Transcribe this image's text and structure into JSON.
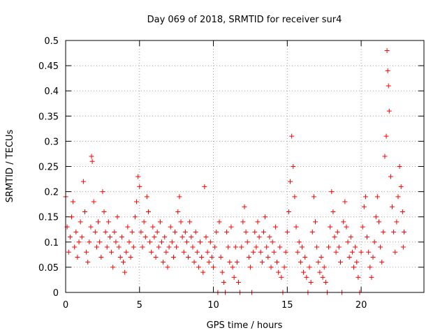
{
  "chart_data": {
    "type": "scatter",
    "title": "Day 069 of 2018, SRMTID for receiver sur4",
    "xlabel": "GPS time / hours",
    "ylabel": "SRMTID / TECUs",
    "xlim": [
      0,
      24.25
    ],
    "ylim": [
      0,
      0.5
    ],
    "x_ticks": [
      0,
      5,
      10,
      15,
      20
    ],
    "x_tick_labels": [
      "0",
      "5",
      "10",
      "15",
      "20"
    ],
    "y_ticks": [
      0,
      0.05,
      0.1,
      0.15,
      0.2,
      0.25,
      0.3,
      0.35,
      0.4,
      0.45,
      0.5
    ],
    "y_tick_labels": [
      "0",
      "0.05",
      "0.1",
      "0.15",
      "0.2",
      "0.25",
      "0.3",
      "0.35",
      "0.4",
      "0.45",
      "0.5"
    ],
    "grid": true,
    "marker": "+",
    "color": "#ff0000",
    "series": [
      {
        "name": "SRMTID",
        "points": [
          [
            0.0,
            0.19
          ],
          [
            0.1,
            0.13
          ],
          [
            0.2,
            0.08
          ],
          [
            0.3,
            0.11
          ],
          [
            0.4,
            0.15
          ],
          [
            0.5,
            0.18
          ],
          [
            0.6,
            0.09
          ],
          [
            0.7,
            0.12
          ],
          [
            0.8,
            0.07
          ],
          [
            0.9,
            0.1
          ],
          [
            1.0,
            0.14
          ],
          [
            1.1,
            0.11
          ],
          [
            1.2,
            0.22
          ],
          [
            1.3,
            0.16
          ],
          [
            1.4,
            0.08
          ],
          [
            1.5,
            0.06
          ],
          [
            1.6,
            0.1
          ],
          [
            1.7,
            0.13
          ],
          [
            1.75,
            0.27
          ],
          [
            1.8,
            0.26
          ],
          [
            1.9,
            0.18
          ],
          [
            2.0,
            0.12
          ],
          [
            2.1,
            0.09
          ],
          [
            2.2,
            0.14
          ],
          [
            2.3,
            0.1
          ],
          [
            2.4,
            0.07
          ],
          [
            2.5,
            0.2
          ],
          [
            2.6,
            0.16
          ],
          [
            2.7,
            0.12
          ],
          [
            2.8,
            0.09
          ],
          [
            2.9,
            0.14
          ],
          [
            3.0,
            0.11
          ],
          [
            3.1,
            0.08
          ],
          [
            3.2,
            0.05
          ],
          [
            3.3,
            0.12
          ],
          [
            3.4,
            0.1
          ],
          [
            3.5,
            0.15
          ],
          [
            3.6,
            0.09
          ],
          [
            3.7,
            0.07
          ],
          [
            3.8,
            0.11
          ],
          [
            3.9,
            0.06
          ],
          [
            4.0,
            0.04
          ],
          [
            4.1,
            0.08
          ],
          [
            4.2,
            0.13
          ],
          [
            4.3,
            0.1
          ],
          [
            4.4,
            0.07
          ],
          [
            4.5,
            0.12
          ],
          [
            4.6,
            0.09
          ],
          [
            4.7,
            0.15
          ],
          [
            4.8,
            0.18
          ],
          [
            4.9,
            0.23
          ],
          [
            5.0,
            0.21
          ],
          [
            5.1,
            0.12
          ],
          [
            5.2,
            0.09
          ],
          [
            5.3,
            0.14
          ],
          [
            5.4,
            0.11
          ],
          [
            5.5,
            0.19
          ],
          [
            5.6,
            0.16
          ],
          [
            5.7,
            0.1
          ],
          [
            5.8,
            0.08
          ],
          [
            5.9,
            0.13
          ],
          [
            6.0,
            0.11
          ],
          [
            6.1,
            0.07
          ],
          [
            6.2,
            0.12
          ],
          [
            6.3,
            0.09
          ],
          [
            6.4,
            0.14
          ],
          [
            6.5,
            0.1
          ],
          [
            6.6,
            0.06
          ],
          [
            6.7,
            0.11
          ],
          [
            6.8,
            0.08
          ],
          [
            6.9,
            0.05
          ],
          [
            7.0,
            0.09
          ],
          [
            7.1,
            0.13
          ],
          [
            7.2,
            0.1
          ],
          [
            7.3,
            0.07
          ],
          [
            7.4,
            0.12
          ],
          [
            7.5,
            0.09
          ],
          [
            7.6,
            0.16
          ],
          [
            7.7,
            0.19
          ],
          [
            7.8,
            0.14
          ],
          [
            7.9,
            0.11
          ],
          [
            8.0,
            0.08
          ],
          [
            8.1,
            0.12
          ],
          [
            8.2,
            0.1
          ],
          [
            8.3,
            0.07
          ],
          [
            8.4,
            0.14
          ],
          [
            8.5,
            0.11
          ],
          [
            8.6,
            0.09
          ],
          [
            8.7,
            0.06
          ],
          [
            8.8,
            0.12
          ],
          [
            8.9,
            0.08
          ],
          [
            9.0,
            0.05
          ],
          [
            9.1,
            0.1
          ],
          [
            9.2,
            0.07
          ],
          [
            9.3,
            0.04
          ],
          [
            9.4,
            0.21
          ],
          [
            9.5,
            0.11
          ],
          [
            9.6,
            0.08
          ],
          [
            9.7,
            0.06
          ],
          [
            9.8,
            0.1
          ],
          [
            9.9,
            0.07
          ],
          [
            10.0,
            0.05
          ],
          [
            10.1,
            0.09
          ],
          [
            10.2,
            0.12
          ],
          [
            10.3,
            0.0
          ],
          [
            10.4,
            0.14
          ],
          [
            10.5,
            0.07
          ],
          [
            10.6,
            0.04
          ],
          [
            10.7,
            0.02
          ],
          [
            10.8,
            0.0
          ],
          [
            10.9,
            0.12
          ],
          [
            11.0,
            0.09
          ],
          [
            11.1,
            0.06
          ],
          [
            11.2,
            0.13
          ],
          [
            11.3,
            0.05
          ],
          [
            11.4,
            0.03
          ],
          [
            11.5,
            0.09
          ],
          [
            11.6,
            0.06
          ],
          [
            11.7,
            0.02
          ],
          [
            11.8,
            0.0
          ],
          [
            11.9,
            0.09
          ],
          [
            12.0,
            0.14
          ],
          [
            12.1,
            0.17
          ],
          [
            12.2,
            0.12
          ],
          [
            12.3,
            0.1
          ],
          [
            12.4,
            0.07
          ],
          [
            12.5,
            0.05
          ],
          [
            12.6,
            0.0
          ],
          [
            12.7,
            0.08
          ],
          [
            12.8,
            0.12
          ],
          [
            12.9,
            0.09
          ],
          [
            13.0,
            0.14
          ],
          [
            13.1,
            0.11
          ],
          [
            13.2,
            0.08
          ],
          [
            13.3,
            0.06
          ],
          [
            13.4,
            0.12
          ],
          [
            13.5,
            0.15
          ],
          [
            13.6,
            0.09
          ],
          [
            13.7,
            0.07
          ],
          [
            13.8,
            0.11
          ],
          [
            13.9,
            0.05
          ],
          [
            14.0,
            0.1
          ],
          [
            14.1,
            0.08
          ],
          [
            14.2,
            0.13
          ],
          [
            14.3,
            0.06
          ],
          [
            14.4,
            0.04
          ],
          [
            14.5,
            0.09
          ],
          [
            14.6,
            0.03
          ],
          [
            14.7,
            0.0
          ],
          [
            14.8,
            0.05
          ],
          [
            14.9,
            0.08
          ],
          [
            15.0,
            0.12
          ],
          [
            15.1,
            0.16
          ],
          [
            15.2,
            0.22
          ],
          [
            15.3,
            0.31
          ],
          [
            15.4,
            0.25
          ],
          [
            15.5,
            0.19
          ],
          [
            15.6,
            0.13
          ],
          [
            15.7,
            0.08
          ],
          [
            15.8,
            0.1
          ],
          [
            15.9,
            0.06
          ],
          [
            16.0,
            0.09
          ],
          [
            16.1,
            0.04
          ],
          [
            16.2,
            0.07
          ],
          [
            16.3,
            0.03
          ],
          [
            16.4,
            0.0
          ],
          [
            16.5,
            0.05
          ],
          [
            16.6,
            0.02
          ],
          [
            16.7,
            0.12
          ],
          [
            16.8,
            0.19
          ],
          [
            16.9,
            0.14
          ],
          [
            17.0,
            0.09
          ],
          [
            17.1,
            0.06
          ],
          [
            17.2,
            0.04
          ],
          [
            17.3,
            0.07
          ],
          [
            17.4,
            0.03
          ],
          [
            17.5,
            0.05
          ],
          [
            17.6,
            0.02
          ],
          [
            17.7,
            0.0
          ],
          [
            17.8,
            0.09
          ],
          [
            17.9,
            0.13
          ],
          [
            18.0,
            0.2
          ],
          [
            18.1,
            0.16
          ],
          [
            18.2,
            0.11
          ],
          [
            18.3,
            0.08
          ],
          [
            18.4,
            0.12
          ],
          [
            18.5,
            0.09
          ],
          [
            18.6,
            0.06
          ],
          [
            18.7,
            0.0
          ],
          [
            18.8,
            0.14
          ],
          [
            18.9,
            0.18
          ],
          [
            19.0,
            0.13
          ],
          [
            19.1,
            0.1
          ],
          [
            19.2,
            0.07
          ],
          [
            19.3,
            0.11
          ],
          [
            19.4,
            0.08
          ],
          [
            19.5,
            0.05
          ],
          [
            19.6,
            0.09
          ],
          [
            19.7,
            0.06
          ],
          [
            19.8,
            0.03
          ],
          [
            19.9,
            0.0
          ],
          [
            20.0,
            0.08
          ],
          [
            20.1,
            0.13
          ],
          [
            20.2,
            0.17
          ],
          [
            20.3,
            0.19
          ],
          [
            20.4,
            0.11
          ],
          [
            20.5,
            0.08
          ],
          [
            20.6,
            0.05
          ],
          [
            20.7,
            0.03
          ],
          [
            20.8,
            0.07
          ],
          [
            20.9,
            0.1
          ],
          [
            21.0,
            0.15
          ],
          [
            21.1,
            0.19
          ],
          [
            21.2,
            0.14
          ],
          [
            21.3,
            0.09
          ],
          [
            21.4,
            0.06
          ],
          [
            21.5,
            0.12
          ],
          [
            21.6,
            0.27
          ],
          [
            21.7,
            0.31
          ],
          [
            21.75,
            0.48
          ],
          [
            21.8,
            0.44
          ],
          [
            21.85,
            0.41
          ],
          [
            21.9,
            0.36
          ],
          [
            22.0,
            0.23
          ],
          [
            22.1,
            0.17
          ],
          [
            22.2,
            0.12
          ],
          [
            22.3,
            0.08
          ],
          [
            22.4,
            0.14
          ],
          [
            22.5,
            0.19
          ],
          [
            22.6,
            0.25
          ],
          [
            22.7,
            0.21
          ],
          [
            22.8,
            0.16
          ],
          [
            22.85,
            0.09
          ],
          [
            22.9,
            0.12
          ]
        ]
      }
    ]
  }
}
